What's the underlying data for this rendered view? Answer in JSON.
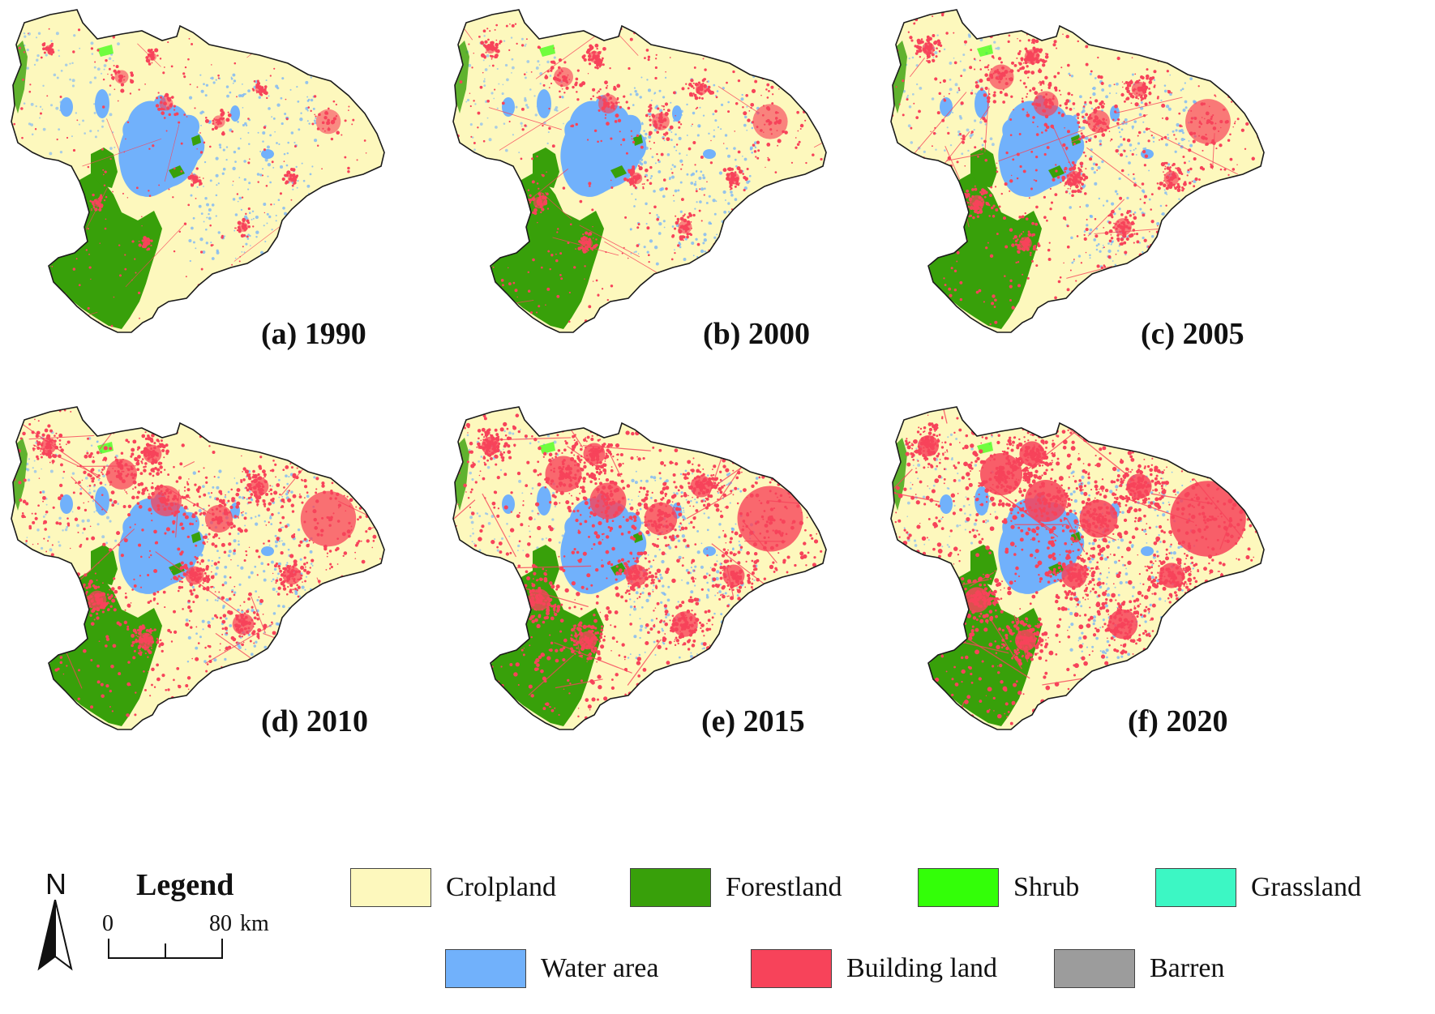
{
  "panels": [
    {
      "label": "(a) 1990",
      "built": 1
    },
    {
      "label": "(b) 2000",
      "built": 2
    },
    {
      "label": "(c) 2005",
      "built": 3
    },
    {
      "label": "(d) 2010",
      "built": 4
    },
    {
      "label": "(e) 2015",
      "built": 5
    },
    {
      "label": "(f) 2020",
      "built": 6
    }
  ],
  "legend": {
    "title": "Legend",
    "north": "N",
    "scale_zero": "0",
    "scale_end": "80",
    "scale_unit": "km",
    "items": [
      {
        "label": "Crolpland",
        "color": "#fdf8bd"
      },
      {
        "label": "Forestland",
        "color": "#38a00a"
      },
      {
        "label": "Shrub",
        "color": "#33ff08"
      },
      {
        "label": "Grassland",
        "color": "#3cf7c4"
      },
      {
        "label": "Water area",
        "color": "#71b1fb"
      },
      {
        "label": "Building land",
        "color": "#f7435a"
      },
      {
        "label": "Barren",
        "color": "#9c9c9c"
      }
    ]
  }
}
